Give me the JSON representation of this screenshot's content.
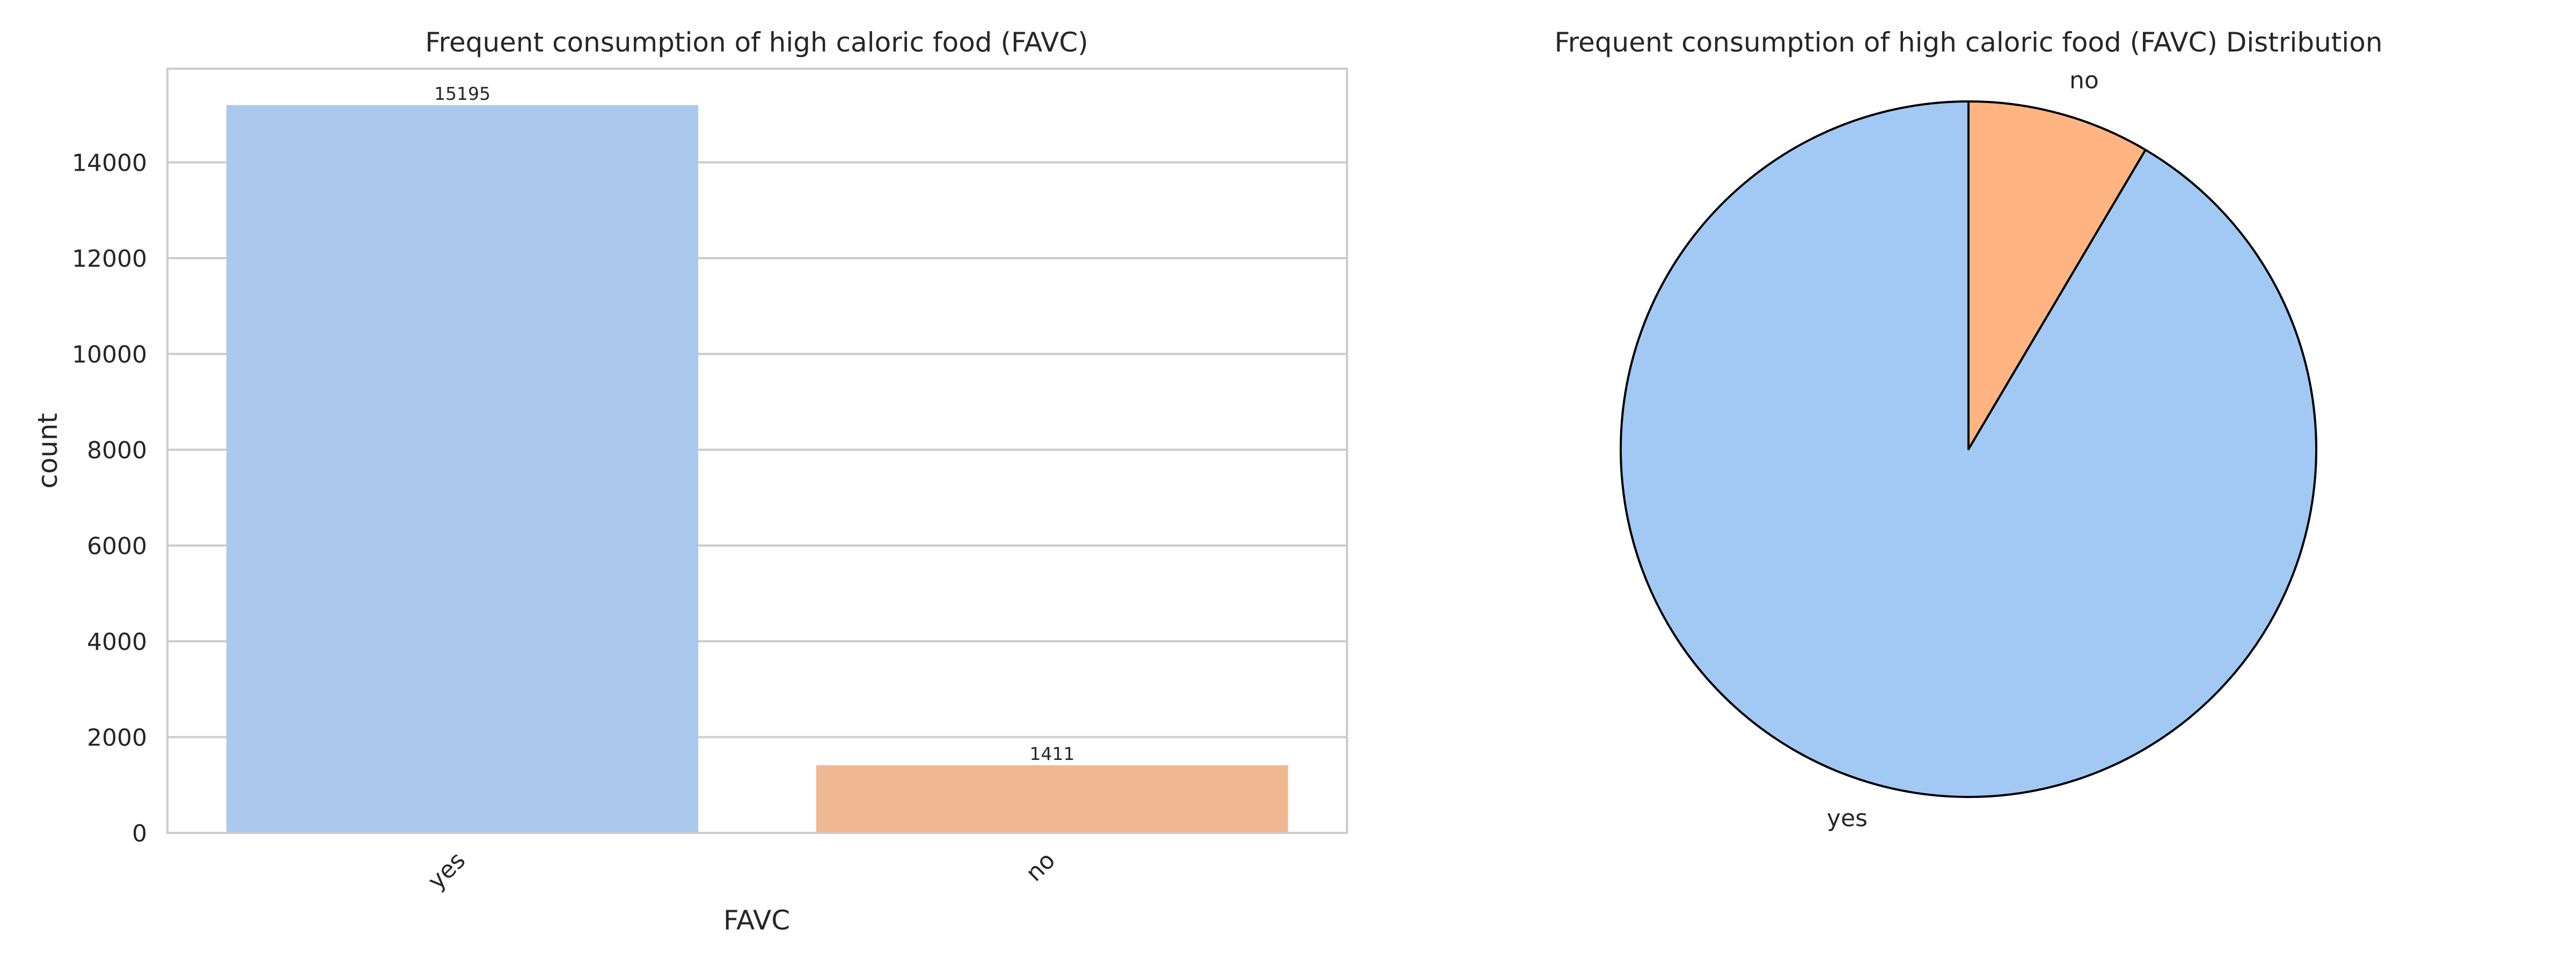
{
  "chart_data": [
    {
      "type": "bar",
      "title": "Frequent consumption of high caloric food (FAVC)",
      "xlabel": "FAVC",
      "ylabel": "count",
      "categories": [
        "yes",
        "no"
      ],
      "values": [
        15195,
        1411
      ],
      "data_labels": [
        "15195",
        "1411"
      ],
      "ylim": [
        0,
        15955
      ],
      "yticks": [
        0,
        2000,
        4000,
        6000,
        8000,
        10000,
        12000,
        14000
      ],
      "ytick_labels": [
        "0",
        "2000",
        "4000",
        "6000",
        "8000",
        "10000",
        "12000",
        "14000"
      ],
      "grid": "horizontal",
      "colors": [
        "#abc9ec",
        "#efb792"
      ]
    },
    {
      "type": "pie",
      "title": "Frequent consumption of high caloric food (FAVC) Distribution",
      "labels": [
        "yes",
        "no"
      ],
      "values": [
        15195,
        1411
      ],
      "start_angle_deg": 90,
      "direction": "counterclockwise",
      "colors": [
        "#a1c9f4",
        "#ffb482"
      ],
      "edgecolor": "#000000"
    }
  ]
}
